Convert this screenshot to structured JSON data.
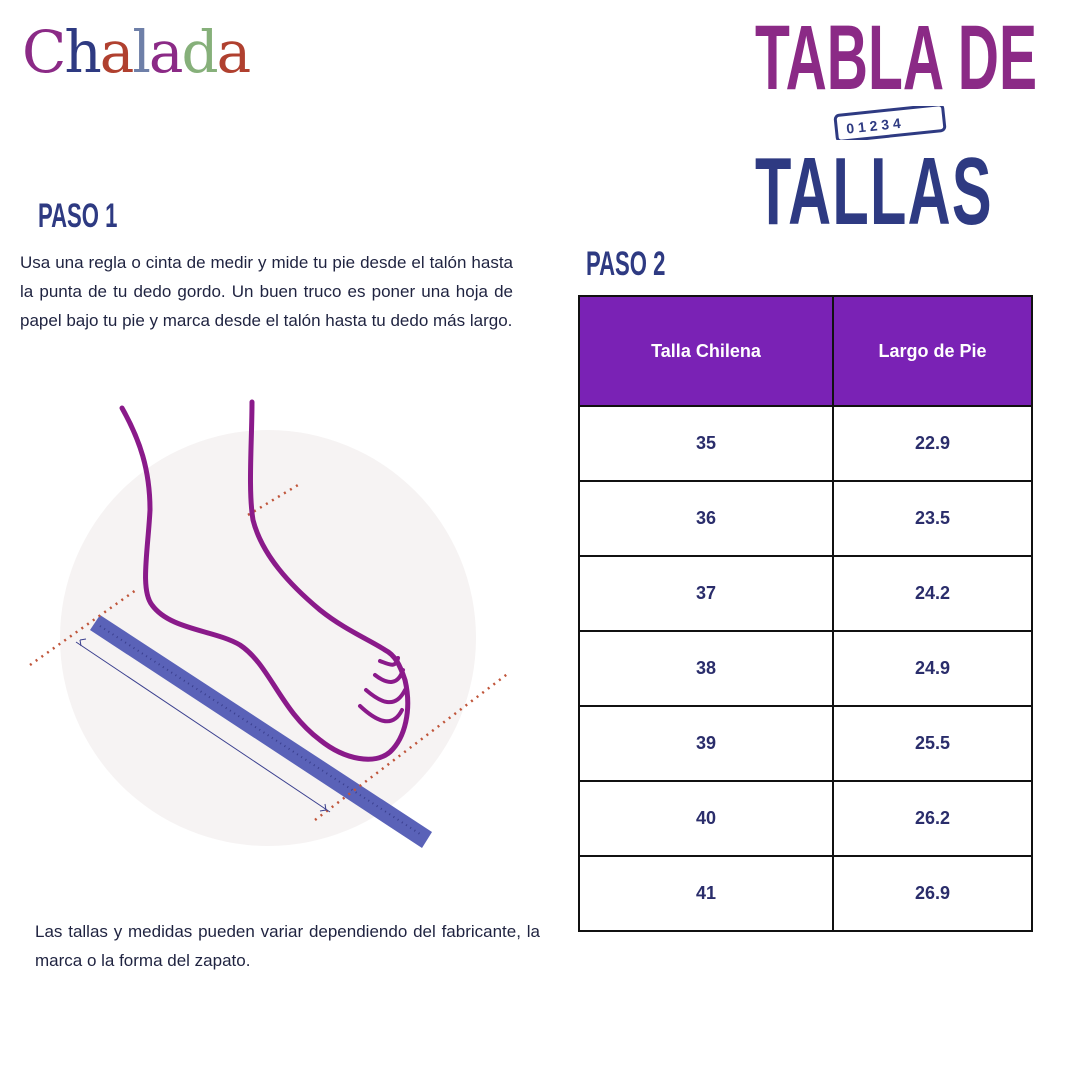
{
  "logo": {
    "text": "Chalada",
    "letters": [
      {
        "ch": "C",
        "color": "#8b2a86"
      },
      {
        "ch": "h",
        "color": "#2e3a82"
      },
      {
        "ch": "a",
        "color": "#b0402f"
      },
      {
        "ch": "l",
        "color": "#6e7fa8"
      },
      {
        "ch": "a",
        "color": "#8b2a86"
      },
      {
        "ch": "d",
        "color": "#86b07a"
      },
      {
        "ch": "a",
        "color": "#b0402f"
      }
    ]
  },
  "title": {
    "line1": "TABLA DE",
    "line2": "TALLAS",
    "ruler_numbers": "0 1 2 3 4"
  },
  "step1": {
    "heading": "PASO 1",
    "text": "Usa una regla o cinta de medir y mide tu pie desde el talón hasta la punta de tu dedo gordo. Un buen truco es poner una hoja de papel bajo tu pie y marca desde el talón hasta tu dedo más largo."
  },
  "step2": {
    "heading": "PASO 2"
  },
  "table": {
    "headers": [
      "Talla Chilena",
      "Largo de Pie"
    ],
    "rows": [
      [
        "35",
        "22.9"
      ],
      [
        "36",
        "23.5"
      ],
      [
        "37",
        "24.2"
      ],
      [
        "38",
        "24.9"
      ],
      [
        "39",
        "25.5"
      ],
      [
        "40",
        "26.2"
      ],
      [
        "41",
        "26.9"
      ]
    ]
  },
  "note": "Las tallas y medidas pueden variar dependiendo del fabricante, la marca o la forma del zapato.",
  "colors": {
    "header_bg": "#7a22b5",
    "navy": "#2e3a82",
    "foot": "#8a1a8a",
    "ruler": "#5a62b8"
  }
}
